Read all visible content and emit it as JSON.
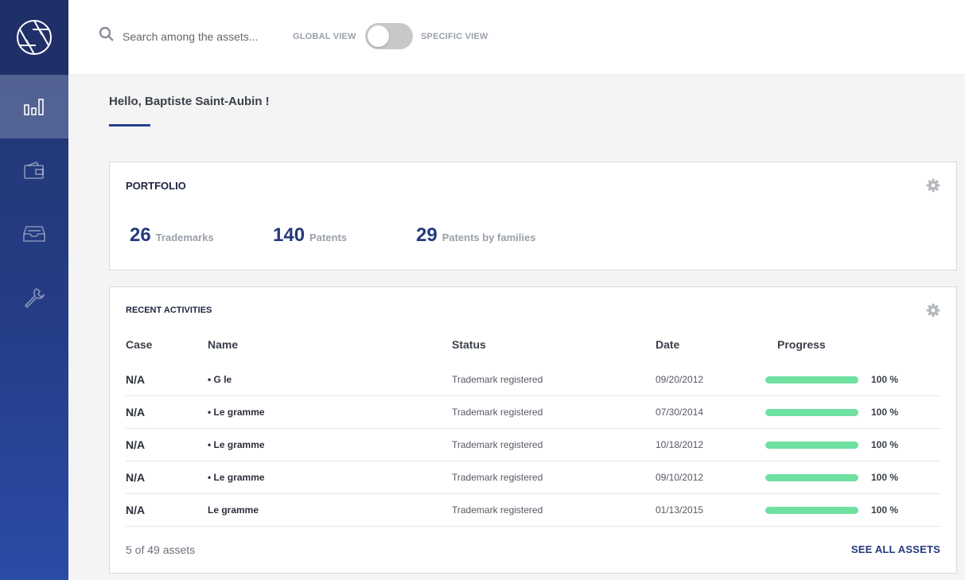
{
  "colors": {
    "sidebar": "#253d86",
    "accent": "#27418f",
    "progress": "#6ee0a0"
  },
  "sidebar": {
    "logo_icon": "aperture-logo",
    "items": [
      {
        "icon": "bar-chart-icon",
        "active": true
      },
      {
        "icon": "wallet-icon",
        "active": false
      },
      {
        "icon": "inbox-tray-icon",
        "active": false
      },
      {
        "icon": "wrench-icon",
        "active": false
      }
    ]
  },
  "header": {
    "search_placeholder": "Search among the assets...",
    "global_view_label": "GLOBAL VIEW",
    "specific_view_label": "SPECIFIC VIEW",
    "view_toggle_on": false
  },
  "greeting": "Hello, Baptiste Saint-Aubin !",
  "portfolio": {
    "title": "PORTFOLIO",
    "stats": [
      {
        "value": "26",
        "label": "Trademarks"
      },
      {
        "value": "140",
        "label": "Patents"
      },
      {
        "value": "29",
        "label": "Patents by families"
      }
    ]
  },
  "activities": {
    "title": "RECENT ACTIVITIES",
    "columns": {
      "case": "Case",
      "name": "Name",
      "status": "Status",
      "date": "Date",
      "progress": "Progress"
    },
    "rows": [
      {
        "case": "N/A",
        "name": "• G le",
        "status": "Trademark registered",
        "date": "09/20/2012",
        "progress": 1.0,
        "progress_label": "100 %"
      },
      {
        "case": "N/A",
        "name": "• Le gramme",
        "status": "Trademark registered",
        "date": "07/30/2014",
        "progress": 1.0,
        "progress_label": "100 %"
      },
      {
        "case": "N/A",
        "name": "• Le gramme",
        "status": "Trademark registered",
        "date": "10/18/2012",
        "progress": 1.0,
        "progress_label": "100 %"
      },
      {
        "case": "N/A",
        "name": "• Le gramme",
        "status": "Trademark registered",
        "date": "09/10/2012",
        "progress": 1.0,
        "progress_label": "100 %"
      },
      {
        "case": "N/A",
        "name": "Le gramme",
        "status": "Trademark registered",
        "date": "01/13/2015",
        "progress": 1.0,
        "progress_label": "100 %"
      }
    ],
    "footer_count": "5 of 49 assets",
    "see_all_label": "SEE ALL ASSETS"
  }
}
